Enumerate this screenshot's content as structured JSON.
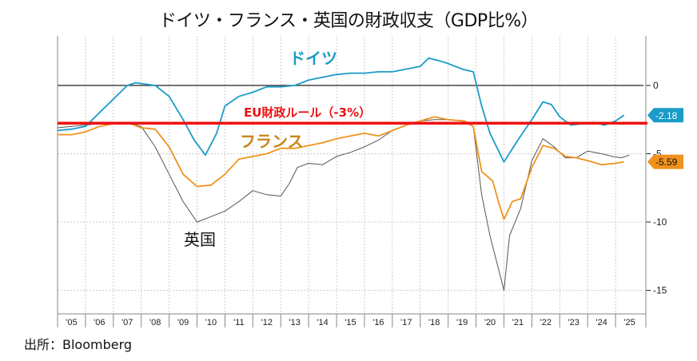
{
  "chart_data": {
    "type": "line",
    "title": "ドイツ・フランス・英国の財政収支（GDP比%）",
    "source": "出所：Bloomberg",
    "x_tick_labels": [
      "'05",
      "'06",
      "'07",
      "'08",
      "'09",
      "'10",
      "'11",
      "'12",
      "'13",
      "'14",
      "'15",
      "'16",
      "'17",
      "'18",
      "'19",
      "'20",
      "'21",
      "'22",
      "'23",
      "'24",
      "'25"
    ],
    "y_ticks": [
      0,
      -5,
      -10,
      -15
    ],
    "xlim": [
      2005,
      2026
    ],
    "ylim": [
      -16.8,
      3.6
    ],
    "grid": true,
    "reference_lines": [
      {
        "value": 0,
        "color": "#222222",
        "label": ""
      },
      {
        "value": -3,
        "color": "#ee1111",
        "label": "EU財政ルール（-3%）"
      }
    ],
    "series": [
      {
        "name": "ドイツ",
        "color": "#1a9cc8",
        "last_value_label": "-2.18",
        "x": [
          2005.0,
          2005.5,
          2006.0,
          2006.5,
          2007.0,
          2007.5,
          2007.8,
          2008.5,
          2009.0,
          2009.5,
          2009.9,
          2010.3,
          2010.7,
          2011.0,
          2011.5,
          2012.0,
          2012.5,
          2013.0,
          2013.5,
          2014.0,
          2014.5,
          2015.0,
          2015.5,
          2016.0,
          2016.5,
          2017.0,
          2017.5,
          2018.0,
          2018.3,
          2018.7,
          2019.0,
          2019.5,
          2019.9,
          2020.2,
          2020.5,
          2021.0,
          2021.5,
          2022.0,
          2022.4,
          2022.7,
          2023.0,
          2023.4,
          2023.8,
          2024.2,
          2024.6,
          2025.0,
          2025.3
        ],
        "y": [
          -3.3,
          -3.2,
          -3.0,
          -2.0,
          -1.0,
          0.0,
          0.2,
          0.0,
          -0.8,
          -2.5,
          -4.0,
          -5.1,
          -3.5,
          -1.5,
          -0.8,
          -0.5,
          -0.1,
          -0.1,
          0.0,
          0.4,
          0.6,
          0.8,
          0.9,
          0.9,
          1.0,
          1.0,
          1.2,
          1.4,
          2.0,
          1.8,
          1.6,
          1.2,
          1.0,
          -1.5,
          -3.5,
          -5.6,
          -4.0,
          -2.5,
          -1.2,
          -1.4,
          -2.3,
          -2.9,
          -2.8,
          -2.7,
          -2.9,
          -2.6,
          -2.18
        ]
      },
      {
        "name": "フランス",
        "color": "#f0921c",
        "label_color": "#c8861a",
        "last_value_label": "-5.59",
        "x": [
          2005.0,
          2005.5,
          2006.0,
          2006.5,
          2007.0,
          2007.5,
          2008.0,
          2008.5,
          2009.0,
          2009.5,
          2010.0,
          2010.5,
          2011.0,
          2011.5,
          2012.0,
          2012.5,
          2013.0,
          2013.5,
          2014.0,
          2014.5,
          2015.0,
          2015.5,
          2016.0,
          2016.5,
          2017.0,
          2017.5,
          2018.0,
          2018.5,
          2019.0,
          2019.6,
          2019.9,
          2020.2,
          2020.6,
          2020.8,
          2021.0,
          2021.3,
          2021.6,
          2022.0,
          2022.4,
          2022.8,
          2023.2,
          2023.6,
          2024.0,
          2024.5,
          2025.0,
          2025.3
        ],
        "y": [
          -3.6,
          -3.6,
          -3.4,
          -3.0,
          -2.8,
          -2.7,
          -3.1,
          -3.2,
          -4.5,
          -6.5,
          -7.4,
          -7.3,
          -6.5,
          -5.4,
          -5.2,
          -5.0,
          -4.6,
          -4.6,
          -4.4,
          -4.2,
          -3.9,
          -3.7,
          -3.5,
          -3.7,
          -3.3,
          -2.9,
          -2.6,
          -2.3,
          -2.5,
          -2.6,
          -3.0,
          -6.3,
          -7.0,
          -8.5,
          -9.8,
          -8.5,
          -8.3,
          -6.0,
          -4.4,
          -4.6,
          -5.2,
          -5.3,
          -5.5,
          -5.8,
          -5.7,
          -5.59
        ]
      },
      {
        "name": "英国",
        "color": "#555555",
        "label_color": "#111111",
        "x": [
          2005.0,
          2005.5,
          2006.0,
          2006.5,
          2007.0,
          2007.5,
          2008.0,
          2008.5,
          2009.0,
          2009.5,
          2010.0,
          2010.5,
          2011.0,
          2011.5,
          2012.0,
          2012.5,
          2013.0,
          2013.3,
          2013.6,
          2014.0,
          2014.5,
          2015.0,
          2015.5,
          2016.0,
          2016.5,
          2017.0,
          2017.5,
          2018.0,
          2018.5,
          2019.0,
          2019.5,
          2019.9,
          2020.2,
          2020.5,
          2021.0,
          2021.2,
          2021.6,
          2022.0,
          2022.4,
          2022.8,
          2023.2,
          2023.6,
          2024.0,
          2024.5,
          2024.9,
          2025.2,
          2025.5
        ],
        "y": [
          -3.1,
          -3.0,
          -2.9,
          -2.8,
          -2.7,
          -2.7,
          -3.0,
          -4.5,
          -6.5,
          -8.5,
          -10.0,
          -9.6,
          -9.2,
          -8.5,
          -7.7,
          -8.0,
          -8.1,
          -7.2,
          -6.0,
          -5.7,
          -5.8,
          -5.2,
          -4.9,
          -4.5,
          -4.0,
          -3.3,
          -2.9,
          -2.6,
          -2.5,
          -2.5,
          -2.6,
          -3.0,
          -8.0,
          -11.0,
          -15.0,
          -11.0,
          -9.0,
          -5.5,
          -3.9,
          -4.5,
          -5.3,
          -5.3,
          -4.8,
          -5.0,
          -5.2,
          -5.3,
          -5.1
        ]
      }
    ]
  }
}
